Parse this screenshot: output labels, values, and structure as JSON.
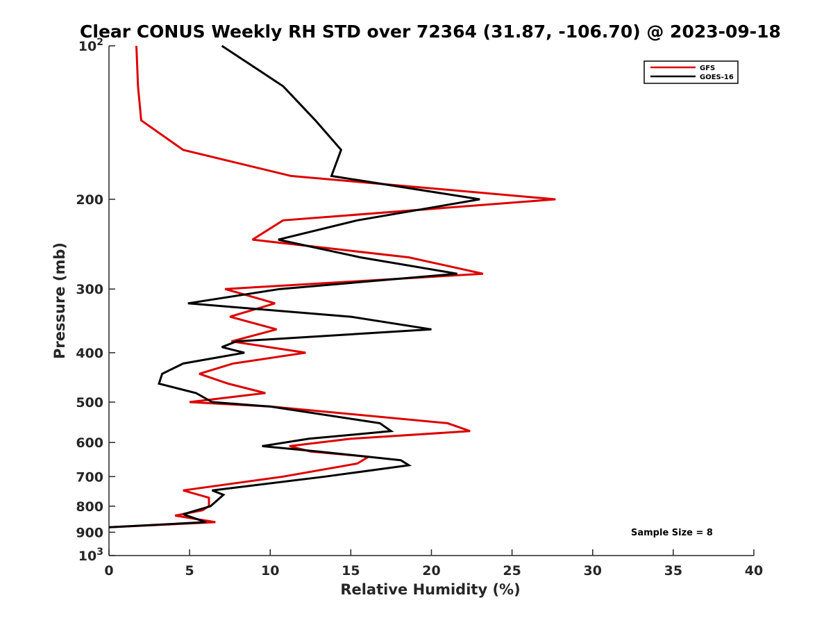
{
  "chart_data": {
    "type": "line",
    "title": "Clear CONUS Weekly RH STD over 72364 (31.87, -106.70) @ 2023-09-18",
    "xlabel": "Relative Humidity (%)",
    "ylabel": "Pressure (mb)",
    "xlim": [
      0,
      40
    ],
    "ylim": [
      100,
      1000
    ],
    "y_scale": "log",
    "y_reversed": true,
    "x_ticks": [
      0,
      5,
      10,
      15,
      20,
      25,
      30,
      35,
      40
    ],
    "x_tick_labels": [
      "0",
      "5",
      "10",
      "15",
      "20",
      "25",
      "30",
      "35",
      "40"
    ],
    "y_ticks": [
      100,
      200,
      300,
      400,
      500,
      600,
      700,
      800,
      900,
      1000
    ],
    "y_tick_labels": [
      {
        "base": "10",
        "exp": "2"
      },
      {
        "base": "200"
      },
      {
        "base": "300"
      },
      {
        "base": "400"
      },
      {
        "base": "500"
      },
      {
        "base": "600"
      },
      {
        "base": "700"
      },
      {
        "base": "800"
      },
      {
        "base": "900"
      },
      {
        "base": "10",
        "exp": "3"
      }
    ],
    "legend_position": "top-right",
    "annotation": "Sample Size = 8",
    "series": [
      {
        "name": "GFS",
        "color": "#dd0000",
        "points": [
          {
            "x": 1.7,
            "y": 100
          },
          {
            "x": 1.8,
            "y": 120
          },
          {
            "x": 2.0,
            "y": 140
          },
          {
            "x": 4.6,
            "y": 160
          },
          {
            "x": 11.3,
            "y": 180
          },
          {
            "x": 27.7,
            "y": 200
          },
          {
            "x": 10.8,
            "y": 220
          },
          {
            "x": 8.9,
            "y": 240
          },
          {
            "x": 18.6,
            "y": 260
          },
          {
            "x": 23.2,
            "y": 280
          },
          {
            "x": 7.2,
            "y": 300
          },
          {
            "x": 10.3,
            "y": 320
          },
          {
            "x": 7.5,
            "y": 340
          },
          {
            "x": 10.4,
            "y": 360
          },
          {
            "x": 7.6,
            "y": 380
          },
          {
            "x": 12.2,
            "y": 400
          },
          {
            "x": 7.7,
            "y": 420
          },
          {
            "x": 5.6,
            "y": 440
          },
          {
            "x": 7.4,
            "y": 460
          },
          {
            "x": 9.7,
            "y": 480
          },
          {
            "x": 5.0,
            "y": 500
          },
          {
            "x": 10.0,
            "y": 510
          },
          {
            "x": 21.0,
            "y": 550
          },
          {
            "x": 22.4,
            "y": 570
          },
          {
            "x": 15.0,
            "y": 590
          },
          {
            "x": 11.2,
            "y": 610
          },
          {
            "x": 12.5,
            "y": 625
          },
          {
            "x": 16.1,
            "y": 640
          },
          {
            "x": 15.4,
            "y": 660
          },
          {
            "x": 10.8,
            "y": 700
          },
          {
            "x": 4.6,
            "y": 745
          },
          {
            "x": 6.2,
            "y": 770
          },
          {
            "x": 6.2,
            "y": 800
          },
          {
            "x": 5.8,
            "y": 815
          },
          {
            "x": 4.1,
            "y": 835
          },
          {
            "x": 6.6,
            "y": 860
          },
          {
            "x": 0.0,
            "y": 880
          }
        ]
      },
      {
        "name": "GOES-16",
        "color": "#000000",
        "points": [
          {
            "x": 7.0,
            "y": 100
          },
          {
            "x": 10.8,
            "y": 120
          },
          {
            "x": 12.8,
            "y": 140
          },
          {
            "x": 14.4,
            "y": 160
          },
          {
            "x": 13.8,
            "y": 180
          },
          {
            "x": 23.0,
            "y": 200
          },
          {
            "x": 15.4,
            "y": 220
          },
          {
            "x": 10.5,
            "y": 240
          },
          {
            "x": 15.6,
            "y": 260
          },
          {
            "x": 21.6,
            "y": 280
          },
          {
            "x": 10.6,
            "y": 300
          },
          {
            "x": 4.9,
            "y": 320
          },
          {
            "x": 15.0,
            "y": 340
          },
          {
            "x": 20.0,
            "y": 360
          },
          {
            "x": 7.9,
            "y": 380
          },
          {
            "x": 7.0,
            "y": 390
          },
          {
            "x": 8.4,
            "y": 400
          },
          {
            "x": 4.6,
            "y": 420
          },
          {
            "x": 3.3,
            "y": 440
          },
          {
            "x": 3.1,
            "y": 460
          },
          {
            "x": 5.4,
            "y": 480
          },
          {
            "x": 6.4,
            "y": 500
          },
          {
            "x": 10.0,
            "y": 510
          },
          {
            "x": 16.8,
            "y": 550
          },
          {
            "x": 17.5,
            "y": 570
          },
          {
            "x": 12.4,
            "y": 590
          },
          {
            "x": 9.5,
            "y": 610
          },
          {
            "x": 13.0,
            "y": 625
          },
          {
            "x": 18.1,
            "y": 650
          },
          {
            "x": 18.6,
            "y": 665
          },
          {
            "x": 13.4,
            "y": 700
          },
          {
            "x": 6.4,
            "y": 745
          },
          {
            "x": 7.1,
            "y": 760
          },
          {
            "x": 6.3,
            "y": 800
          },
          {
            "x": 4.6,
            "y": 830
          },
          {
            "x": 6.0,
            "y": 860
          },
          {
            "x": 0.0,
            "y": 880
          }
        ]
      }
    ]
  }
}
